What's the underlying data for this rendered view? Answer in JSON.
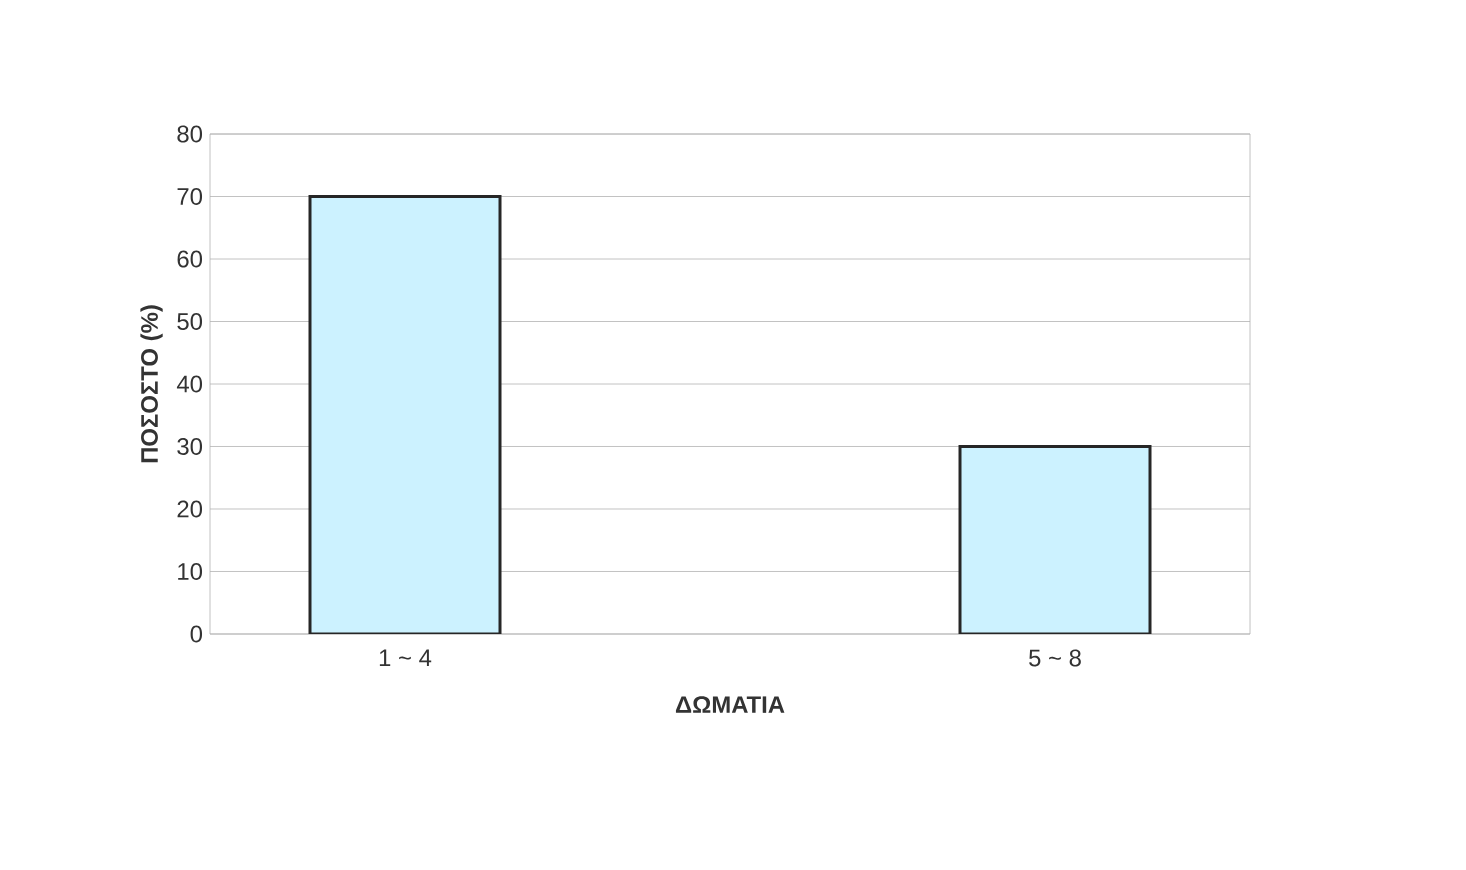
{
  "chart_data": {
    "type": "bar",
    "xlabel": "ΔΩΜΑΤΙΑ",
    "ylabel": "ΠΟΣΟΣΤΟ (%)",
    "categories": [
      "1 ~ 4",
      "5 ~ 8"
    ],
    "values": [
      70,
      30
    ],
    "color": "#ccf2ff",
    "ylim": [
      0,
      80
    ],
    "yticks": [
      0,
      10,
      20,
      30,
      40,
      50,
      60,
      70,
      80
    ],
    "grid": "y"
  }
}
